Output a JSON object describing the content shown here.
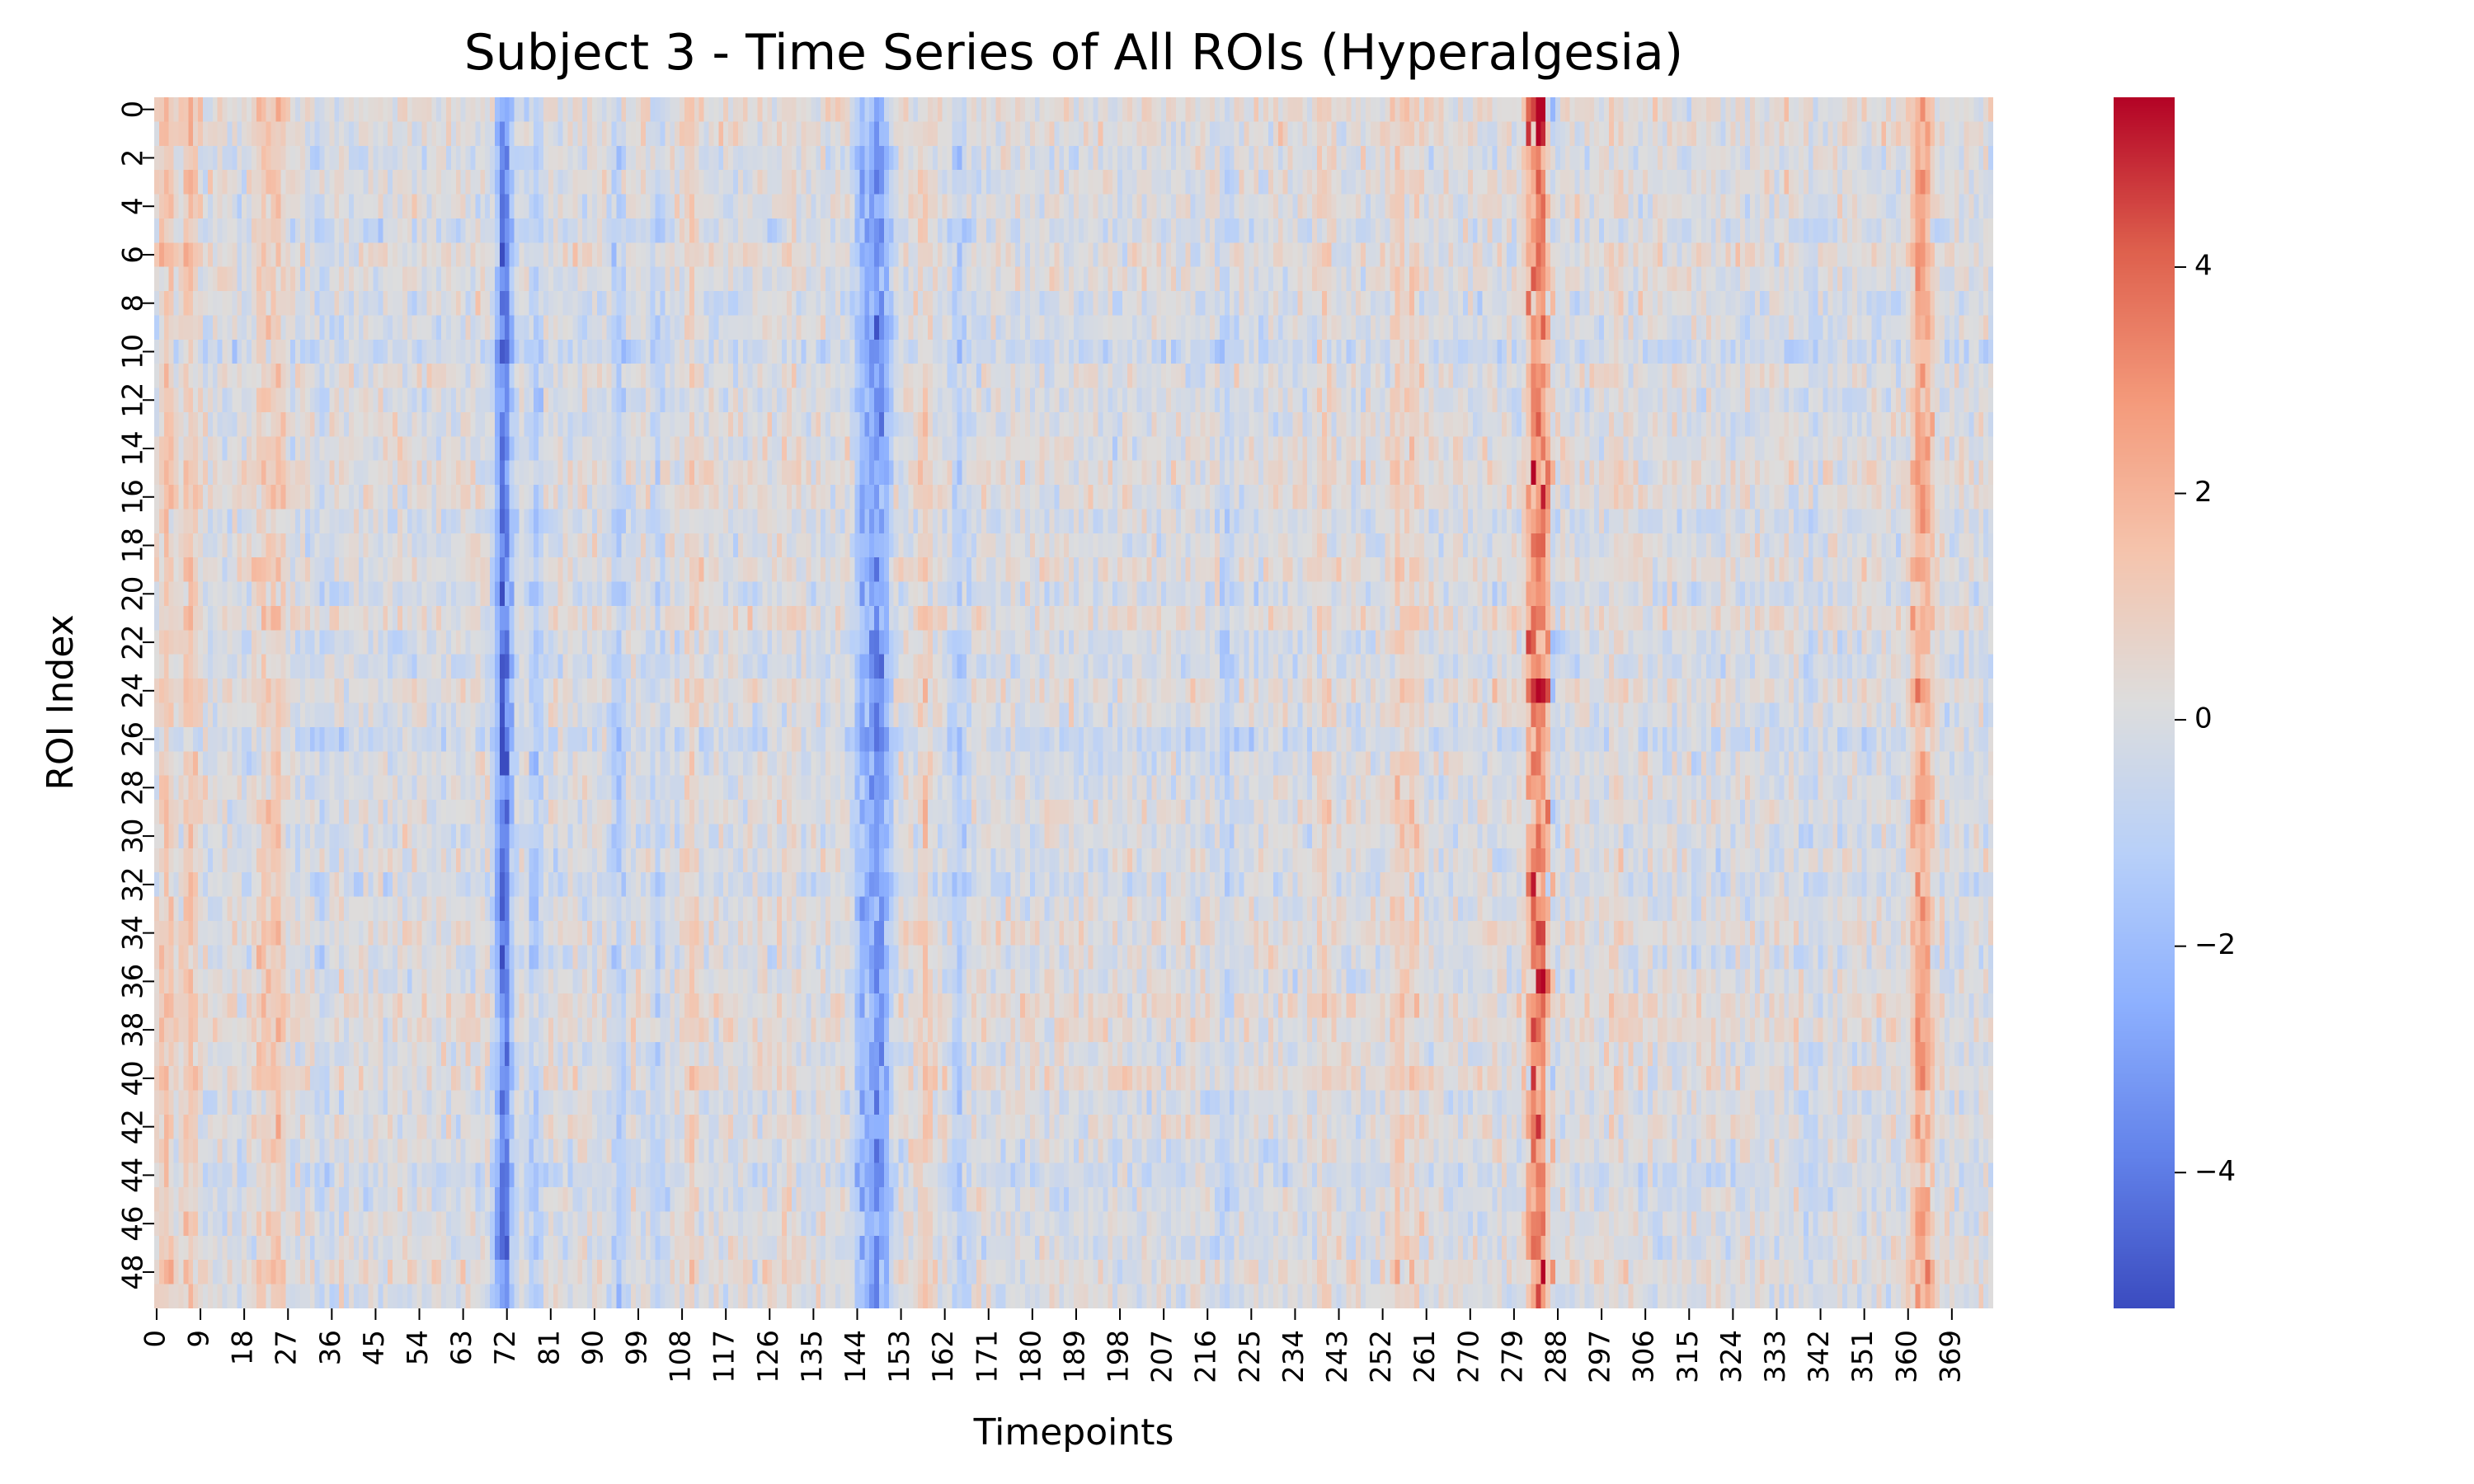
{
  "chart_data": {
    "type": "heatmap",
    "title": "Subject 3 - Time Series of All ROIs (Hyperalgesia)",
    "xlabel": "Timepoints",
    "ylabel": "ROI Index",
    "n_rows": 50,
    "n_cols": 378,
    "xticks": [
      0,
      9,
      18,
      27,
      36,
      45,
      54,
      63,
      72,
      81,
      90,
      99,
      108,
      117,
      126,
      135,
      144,
      153,
      162,
      171,
      180,
      189,
      198,
      207,
      216,
      225,
      234,
      243,
      252,
      261,
      270,
      279,
      288,
      297,
      306,
      315,
      324,
      333,
      342,
      351,
      360,
      369
    ],
    "yticks": [
      0,
      2,
      4,
      6,
      8,
      10,
      12,
      14,
      16,
      18,
      20,
      22,
      24,
      26,
      28,
      30,
      32,
      34,
      36,
      38,
      40,
      42,
      44,
      46,
      48
    ],
    "colormap": "coolwarm",
    "vmin": -5.2,
    "vmax": 5.5,
    "colorbar_ticks": [
      4,
      2,
      0,
      -2,
      -4
    ],
    "colorbar_tick_labels": [
      "4",
      "2",
      "0",
      "−2",
      "−4"
    ],
    "column_profile": [
      {
        "t": 2,
        "mean": 1.4
      },
      {
        "t": 7,
        "mean": 1.3
      },
      {
        "t": 22,
        "mean": 1.0
      },
      {
        "t": 25,
        "mean": 1.2
      },
      {
        "t": 34,
        "mean": -0.6
      },
      {
        "t": 71,
        "mean": -2.8
      },
      {
        "t": 72,
        "mean": -1.8
      },
      {
        "t": 78,
        "mean": -1.2
      },
      {
        "t": 95,
        "mean": -1.3
      },
      {
        "t": 103,
        "mean": -0.8
      },
      {
        "t": 110,
        "mean": 0.8
      },
      {
        "t": 130,
        "mean": 0.5
      },
      {
        "t": 145,
        "mean": -2.2
      },
      {
        "t": 148,
        "mean": -3.0
      },
      {
        "t": 150,
        "mean": -1.5
      },
      {
        "t": 158,
        "mean": 1.0
      },
      {
        "t": 165,
        "mean": -1.2
      },
      {
        "t": 220,
        "mean": -0.9
      },
      {
        "t": 240,
        "mean": 0.8
      },
      {
        "t": 255,
        "mean": 1.0
      },
      {
        "t": 258,
        "mean": 0.9
      },
      {
        "t": 283,
        "mean": 2.5
      },
      {
        "t": 285,
        "mean": 2.8
      },
      {
        "t": 287,
        "mean": -0.5
      },
      {
        "t": 300,
        "mean": 0.6
      },
      {
        "t": 340,
        "mean": -0.6
      },
      {
        "t": 362,
        "mean": 1.9
      },
      {
        "t": 364,
        "mean": 1.4
      }
    ]
  }
}
